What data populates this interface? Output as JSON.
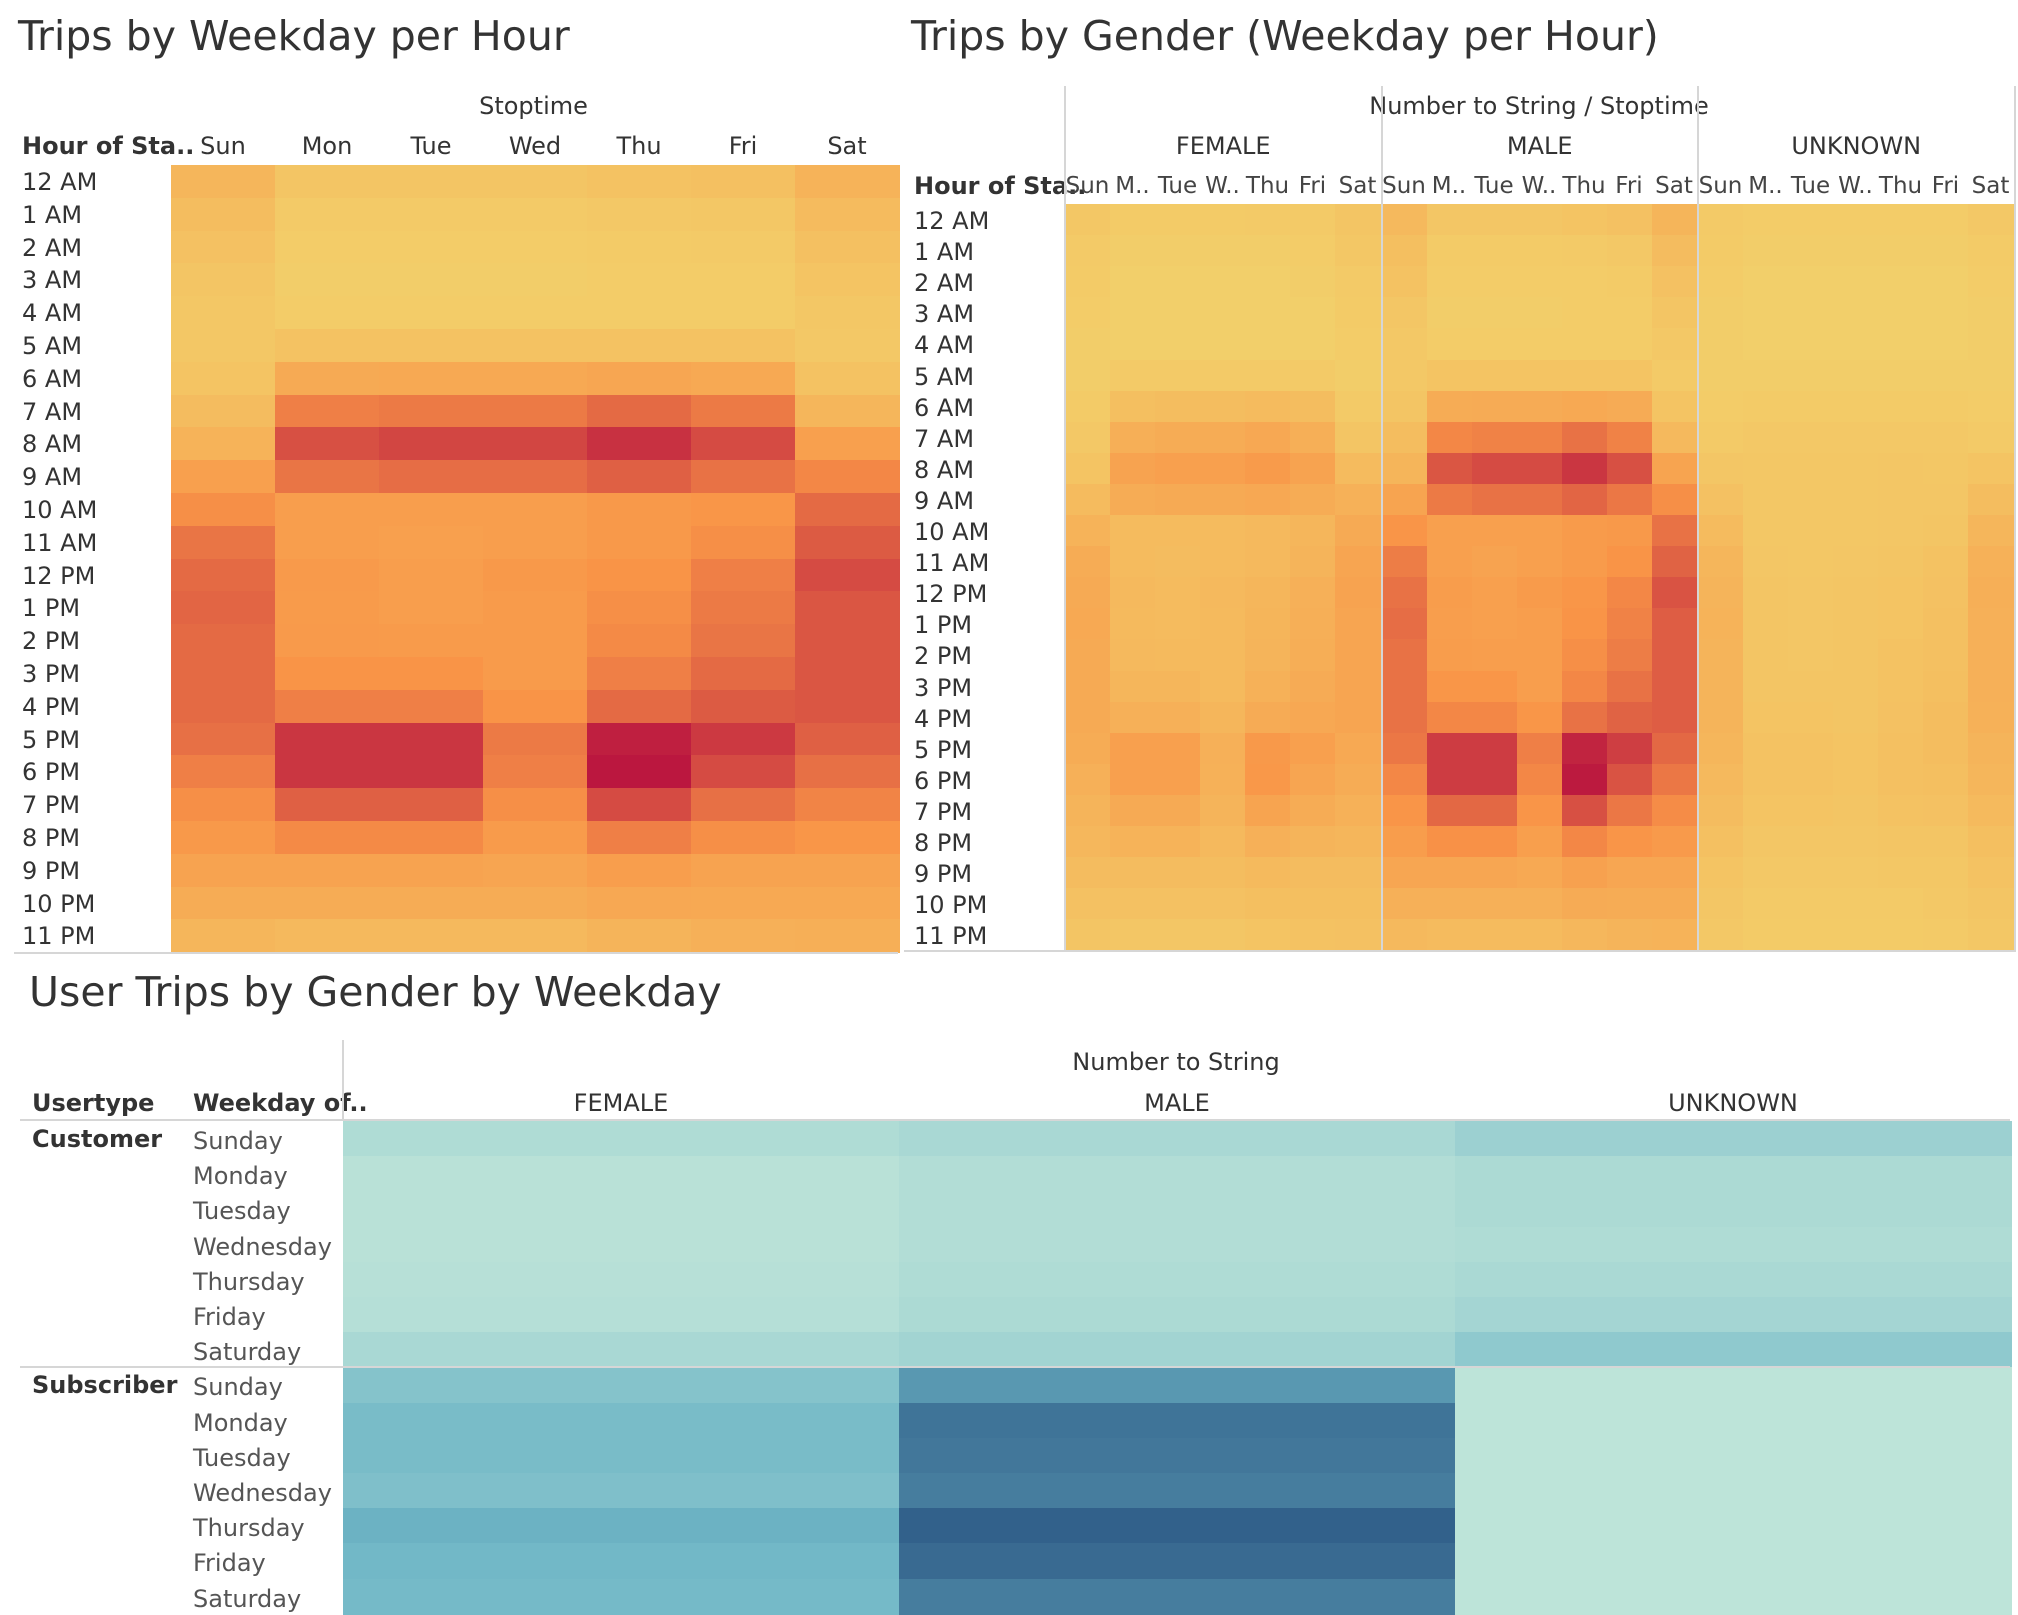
{
  "colors": {
    "heat_low": "#f2d16b",
    "heat_mid": "#f99447",
    "heat_high": "#b8123f",
    "teal_low": "#bfe5d9",
    "teal_mid": "#6fb6c6",
    "teal_high": "#2b5784",
    "divider": "#d6d6d6"
  },
  "chart_data": [
    {
      "type": "heatmap",
      "title": "Trips by Weekday per Hour",
      "column_header": "Stoptime",
      "row_header": "Hour of Sta..",
      "columns": [
        "Sun",
        "Mon",
        "Tue",
        "Wed",
        "Thu",
        "Fri",
        "Sat"
      ],
      "rows": [
        "12 AM",
        "1 AM",
        "2 AM",
        "3 AM",
        "4 AM",
        "5 AM",
        "6 AM",
        "7 AM",
        "8 AM",
        "9 AM",
        "10 AM",
        "11 AM",
        "12 PM",
        "1 PM",
        "2 PM",
        "3 PM",
        "4 PM",
        "5 PM",
        "6 PM",
        "7 PM",
        "8 PM",
        "9 PM",
        "10 PM",
        "11 PM"
      ],
      "values": [
        [
          0.22,
          0.1,
          0.1,
          0.1,
          0.12,
          0.14,
          0.25
        ],
        [
          0.16,
          0.06,
          0.06,
          0.06,
          0.07,
          0.08,
          0.18
        ],
        [
          0.13,
          0.04,
          0.04,
          0.04,
          0.05,
          0.06,
          0.14
        ],
        [
          0.1,
          0.03,
          0.03,
          0.03,
          0.04,
          0.04,
          0.11
        ],
        [
          0.08,
          0.04,
          0.04,
          0.04,
          0.04,
          0.04,
          0.08
        ],
        [
          0.08,
          0.12,
          0.12,
          0.12,
          0.12,
          0.12,
          0.07
        ],
        [
          0.11,
          0.32,
          0.33,
          0.33,
          0.35,
          0.33,
          0.12
        ],
        [
          0.17,
          0.58,
          0.6,
          0.6,
          0.66,
          0.6,
          0.22
        ],
        [
          0.25,
          0.76,
          0.8,
          0.8,
          0.88,
          0.78,
          0.4
        ],
        [
          0.4,
          0.62,
          0.65,
          0.65,
          0.7,
          0.63,
          0.55
        ],
        [
          0.52,
          0.42,
          0.42,
          0.42,
          0.46,
          0.48,
          0.66
        ],
        [
          0.62,
          0.42,
          0.4,
          0.42,
          0.46,
          0.52,
          0.72
        ],
        [
          0.66,
          0.45,
          0.42,
          0.46,
          0.5,
          0.58,
          0.78
        ],
        [
          0.68,
          0.44,
          0.42,
          0.44,
          0.52,
          0.6,
          0.74
        ],
        [
          0.66,
          0.45,
          0.44,
          0.44,
          0.54,
          0.62,
          0.74
        ],
        [
          0.66,
          0.5,
          0.5,
          0.44,
          0.58,
          0.66,
          0.74
        ],
        [
          0.66,
          0.58,
          0.58,
          0.5,
          0.66,
          0.72,
          0.74
        ],
        [
          0.64,
          0.86,
          0.86,
          0.6,
          0.95,
          0.85,
          0.7
        ],
        [
          0.58,
          0.86,
          0.86,
          0.58,
          0.98,
          0.78,
          0.64
        ],
        [
          0.52,
          0.7,
          0.7,
          0.52,
          0.78,
          0.64,
          0.56
        ],
        [
          0.46,
          0.54,
          0.54,
          0.44,
          0.58,
          0.52,
          0.48
        ],
        [
          0.38,
          0.38,
          0.38,
          0.36,
          0.42,
          0.38,
          0.38
        ],
        [
          0.3,
          0.3,
          0.3,
          0.3,
          0.34,
          0.33,
          0.33
        ],
        [
          0.22,
          0.2,
          0.2,
          0.2,
          0.24,
          0.27,
          0.28
        ]
      ]
    },
    {
      "type": "heatmap",
      "title": "Trips by Gender (Weekday per Hour)",
      "column_header": "Number to String  /  Stoptime",
      "row_header": "Hour of Sta..",
      "groups": [
        "FEMALE",
        "MALE",
        "UNKNOWN"
      ],
      "columns": [
        "Sun",
        "M..",
        "Tue",
        "W..",
        "Thu",
        "Fri",
        "Sat"
      ],
      "rows": [
        "12 AM",
        "1 AM",
        "2 AM",
        "3 AM",
        "4 AM",
        "5 AM",
        "6 AM",
        "7 AM",
        "8 AM",
        "9 AM",
        "10 AM",
        "11 AM",
        "12 PM",
        "1 PM",
        "2 PM",
        "3 PM",
        "4 PM",
        "5 PM",
        "6 PM",
        "7 PM",
        "8 PM",
        "9 PM",
        "10 PM",
        "11 PM"
      ],
      "values": {
        "FEMALE": [
          [
            0.08,
            0.05,
            0.05,
            0.05,
            0.06,
            0.06,
            0.1
          ],
          [
            0.06,
            0.03,
            0.03,
            0.03,
            0.03,
            0.04,
            0.08
          ],
          [
            0.05,
            0.02,
            0.02,
            0.02,
            0.02,
            0.03,
            0.06
          ],
          [
            0.04,
            0.02,
            0.02,
            0.02,
            0.02,
            0.02,
            0.05
          ],
          [
            0.03,
            0.02,
            0.02,
            0.02,
            0.02,
            0.02,
            0.04
          ],
          [
            0.03,
            0.06,
            0.06,
            0.06,
            0.06,
            0.06,
            0.03
          ],
          [
            0.05,
            0.15,
            0.16,
            0.16,
            0.18,
            0.16,
            0.06
          ],
          [
            0.07,
            0.28,
            0.3,
            0.3,
            0.34,
            0.28,
            0.1
          ],
          [
            0.11,
            0.38,
            0.4,
            0.4,
            0.44,
            0.38,
            0.18
          ],
          [
            0.18,
            0.3,
            0.32,
            0.32,
            0.34,
            0.3,
            0.26
          ],
          [
            0.25,
            0.18,
            0.18,
            0.18,
            0.2,
            0.22,
            0.32
          ],
          [
            0.3,
            0.18,
            0.17,
            0.18,
            0.2,
            0.24,
            0.36
          ],
          [
            0.32,
            0.2,
            0.18,
            0.2,
            0.22,
            0.27,
            0.38
          ],
          [
            0.33,
            0.19,
            0.18,
            0.19,
            0.23,
            0.28,
            0.36
          ],
          [
            0.32,
            0.2,
            0.19,
            0.19,
            0.24,
            0.29,
            0.36
          ],
          [
            0.32,
            0.22,
            0.22,
            0.19,
            0.26,
            0.31,
            0.36
          ],
          [
            0.32,
            0.27,
            0.27,
            0.22,
            0.31,
            0.34,
            0.36
          ],
          [
            0.3,
            0.4,
            0.4,
            0.27,
            0.46,
            0.4,
            0.33
          ],
          [
            0.27,
            0.4,
            0.4,
            0.26,
            0.47,
            0.36,
            0.3
          ],
          [
            0.24,
            0.32,
            0.32,
            0.24,
            0.37,
            0.3,
            0.26
          ],
          [
            0.21,
            0.25,
            0.25,
            0.2,
            0.27,
            0.24,
            0.22
          ],
          [
            0.17,
            0.17,
            0.17,
            0.16,
            0.19,
            0.17,
            0.17
          ],
          [
            0.13,
            0.13,
            0.13,
            0.13,
            0.15,
            0.15,
            0.15
          ],
          [
            0.1,
            0.09,
            0.09,
            0.09,
            0.11,
            0.12,
            0.13
          ]
        ],
        "MALE": [
          [
            0.2,
            0.09,
            0.09,
            0.09,
            0.11,
            0.13,
            0.23
          ],
          [
            0.15,
            0.05,
            0.05,
            0.05,
            0.06,
            0.07,
            0.17
          ],
          [
            0.12,
            0.04,
            0.04,
            0.04,
            0.04,
            0.05,
            0.13
          ],
          [
            0.09,
            0.03,
            0.03,
            0.03,
            0.04,
            0.04,
            0.1
          ],
          [
            0.07,
            0.04,
            0.04,
            0.04,
            0.04,
            0.04,
            0.07
          ],
          [
            0.07,
            0.11,
            0.11,
            0.11,
            0.11,
            0.11,
            0.06
          ],
          [
            0.1,
            0.3,
            0.31,
            0.31,
            0.33,
            0.31,
            0.11
          ],
          [
            0.16,
            0.55,
            0.57,
            0.57,
            0.63,
            0.57,
            0.2
          ],
          [
            0.23,
            0.74,
            0.78,
            0.78,
            0.86,
            0.76,
            0.37
          ],
          [
            0.37,
            0.6,
            0.63,
            0.63,
            0.68,
            0.61,
            0.52
          ],
          [
            0.49,
            0.4,
            0.4,
            0.4,
            0.44,
            0.46,
            0.63
          ],
          [
            0.59,
            0.4,
            0.38,
            0.4,
            0.44,
            0.5,
            0.69
          ],
          [
            0.63,
            0.43,
            0.4,
            0.44,
            0.48,
            0.55,
            0.75
          ],
          [
            0.65,
            0.42,
            0.4,
            0.42,
            0.5,
            0.57,
            0.71
          ],
          [
            0.63,
            0.43,
            0.42,
            0.42,
            0.52,
            0.59,
            0.71
          ],
          [
            0.63,
            0.48,
            0.48,
            0.42,
            0.55,
            0.63,
            0.71
          ],
          [
            0.63,
            0.55,
            0.55,
            0.48,
            0.63,
            0.69,
            0.71
          ],
          [
            0.61,
            0.84,
            0.84,
            0.58,
            0.93,
            0.83,
            0.67
          ],
          [
            0.55,
            0.84,
            0.84,
            0.55,
            0.97,
            0.75,
            0.61
          ],
          [
            0.49,
            0.67,
            0.67,
            0.49,
            0.76,
            0.61,
            0.53
          ],
          [
            0.43,
            0.51,
            0.51,
            0.41,
            0.55,
            0.49,
            0.45
          ],
          [
            0.35,
            0.35,
            0.35,
            0.33,
            0.39,
            0.35,
            0.35
          ],
          [
            0.27,
            0.27,
            0.27,
            0.27,
            0.31,
            0.3,
            0.3
          ],
          [
            0.2,
            0.18,
            0.18,
            0.18,
            0.21,
            0.24,
            0.25
          ]
        ],
        "UNKNOWN": [
          [
            0.06,
            0.04,
            0.04,
            0.04,
            0.04,
            0.04,
            0.07
          ],
          [
            0.05,
            0.03,
            0.03,
            0.03,
            0.03,
            0.03,
            0.05
          ],
          [
            0.04,
            0.02,
            0.02,
            0.02,
            0.02,
            0.02,
            0.04
          ],
          [
            0.03,
            0.02,
            0.02,
            0.02,
            0.02,
            0.02,
            0.03
          ],
          [
            0.03,
            0.02,
            0.02,
            0.02,
            0.02,
            0.02,
            0.03
          ],
          [
            0.03,
            0.03,
            0.03,
            0.03,
            0.03,
            0.03,
            0.03
          ],
          [
            0.04,
            0.05,
            0.05,
            0.05,
            0.05,
            0.05,
            0.04
          ],
          [
            0.06,
            0.07,
            0.07,
            0.07,
            0.07,
            0.07,
            0.06
          ],
          [
            0.09,
            0.08,
            0.08,
            0.08,
            0.09,
            0.08,
            0.11
          ],
          [
            0.13,
            0.08,
            0.08,
            0.08,
            0.09,
            0.09,
            0.16
          ],
          [
            0.18,
            0.08,
            0.08,
            0.08,
            0.09,
            0.1,
            0.22
          ],
          [
            0.22,
            0.09,
            0.08,
            0.09,
            0.1,
            0.12,
            0.26
          ],
          [
            0.24,
            0.1,
            0.09,
            0.1,
            0.11,
            0.13,
            0.28
          ],
          [
            0.25,
            0.1,
            0.09,
            0.1,
            0.11,
            0.14,
            0.27
          ],
          [
            0.24,
            0.1,
            0.09,
            0.1,
            0.12,
            0.14,
            0.27
          ],
          [
            0.24,
            0.1,
            0.1,
            0.1,
            0.12,
            0.15,
            0.27
          ],
          [
            0.24,
            0.11,
            0.11,
            0.1,
            0.13,
            0.16,
            0.26
          ],
          [
            0.22,
            0.12,
            0.12,
            0.11,
            0.14,
            0.16,
            0.24
          ],
          [
            0.2,
            0.12,
            0.12,
            0.11,
            0.14,
            0.15,
            0.22
          ],
          [
            0.17,
            0.11,
            0.11,
            0.1,
            0.12,
            0.13,
            0.19
          ],
          [
            0.14,
            0.09,
            0.09,
            0.09,
            0.1,
            0.1,
            0.15
          ],
          [
            0.11,
            0.07,
            0.07,
            0.07,
            0.08,
            0.08,
            0.12
          ],
          [
            0.09,
            0.06,
            0.06,
            0.06,
            0.06,
            0.07,
            0.1
          ],
          [
            0.07,
            0.05,
            0.05,
            0.05,
            0.05,
            0.06,
            0.08
          ]
        ]
      }
    },
    {
      "type": "heatmap",
      "title": "User Trips by Gender by Weekday",
      "column_header": "Number to String",
      "row_headers": [
        "Usertype",
        "Weekday of.."
      ],
      "columns": [
        "FEMALE",
        "MALE",
        "UNKNOWN"
      ],
      "groups": [
        {
          "name": "Customer",
          "rows": [
            "Sunday",
            "Monday",
            "Tuesday",
            "Wednesday",
            "Thursday",
            "Friday",
            "Saturday"
          ],
          "values": [
            [
              0.1,
              0.14,
              0.22
            ],
            [
              0.04,
              0.08,
              0.12
            ],
            [
              0.04,
              0.08,
              0.12
            ],
            [
              0.04,
              0.08,
              0.1
            ],
            [
              0.05,
              0.1,
              0.13
            ],
            [
              0.06,
              0.12,
              0.17
            ],
            [
              0.14,
              0.18,
              0.3
            ]
          ]
        },
        {
          "name": "Subscriber",
          "rows": [
            "Sunday",
            "Monday",
            "Tuesday",
            "Wednesday",
            "Thursday",
            "Friday",
            "Saturday"
          ],
          "values": [
            [
              0.36,
              0.66,
              0.01
            ],
            [
              0.44,
              0.85,
              0.01
            ],
            [
              0.44,
              0.83,
              0.01
            ],
            [
              0.4,
              0.8,
              0.01
            ],
            [
              0.52,
              0.95,
              0.01
            ],
            [
              0.48,
              0.9,
              0.01
            ],
            [
              0.46,
              0.8,
              0.01
            ]
          ]
        }
      ]
    }
  ]
}
